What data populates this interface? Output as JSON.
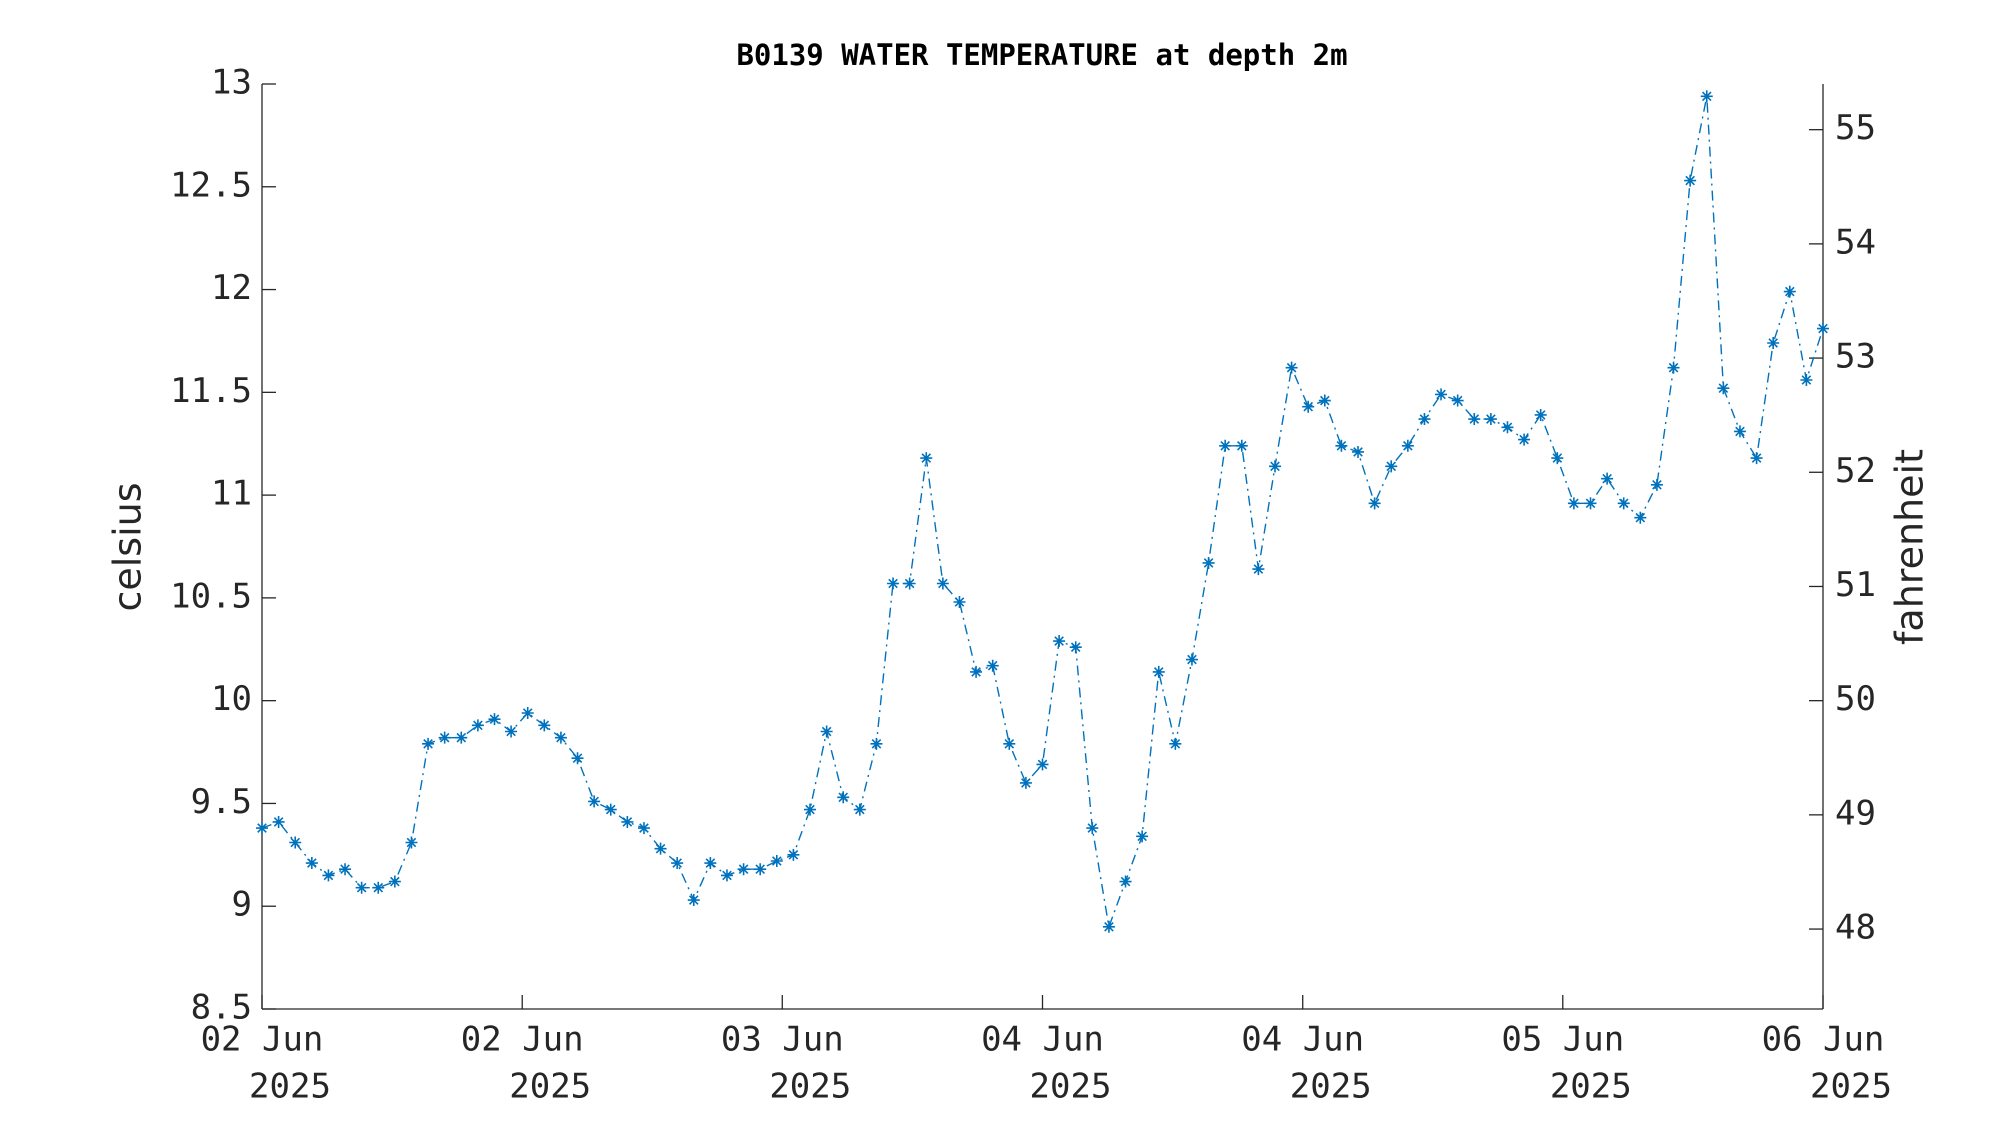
{
  "chart_data": {
    "type": "line",
    "title": "B0139 WATER TEMPERATURE at depth 2m",
    "ylabel": "celsius",
    "y2label": "fahrenheit",
    "xlim": [
      0,
      94
    ],
    "xticks": [
      {
        "value": 0,
        "label": [
          "02 Jun",
          "2025"
        ]
      },
      {
        "value": 15.67,
        "label": [
          "02 Jun",
          "2025"
        ]
      },
      {
        "value": 31.33,
        "label": [
          "03 Jun",
          "2025"
        ]
      },
      {
        "value": 47,
        "label": [
          "04 Jun",
          "2025"
        ]
      },
      {
        "value": 62.67,
        "label": [
          "04 Jun",
          "2025"
        ]
      },
      {
        "value": 78.33,
        "label": [
          "05 Jun",
          "2025"
        ]
      },
      {
        "value": 94,
        "label": [
          "06 Jun",
          "2025"
        ]
      }
    ],
    "ylim": [
      8.5,
      13
    ],
    "yticks": [
      {
        "value": 8.5,
        "label": "8.5"
      },
      9,
      {
        "value": 9.5,
        "label": "9.5"
      },
      10,
      {
        "value": 10.5,
        "label": "10.5"
      },
      11,
      {
        "value": 11.5,
        "label": "11.5"
      },
      12,
      {
        "value": 12.5,
        "label": "12.5"
      },
      13
    ],
    "y2lim": [
      47.3,
      55.4
    ],
    "y2ticks": [
      48,
      49,
      50,
      51,
      52,
      53,
      54,
      55
    ],
    "series": [
      {
        "color": "#0072bd",
        "line_style": "dash-dot",
        "marker": "asterisk",
        "values": [
          9.38,
          9.41,
          9.31,
          9.21,
          9.15,
          9.18,
          9.09,
          9.09,
          9.12,
          9.31,
          9.79,
          9.82,
          9.82,
          9.88,
          9.91,
          9.85,
          9.94,
          9.88,
          9.82,
          9.72,
          9.51,
          9.47,
          9.41,
          9.38,
          9.28,
          9.21,
          9.03,
          9.21,
          9.15,
          9.18,
          9.18,
          9.22,
          9.25,
          9.47,
          9.85,
          9.53,
          9.47,
          9.79,
          10.57,
          10.57,
          11.18,
          10.57,
          10.48,
          10.14,
          10.17,
          9.79,
          9.6,
          9.69,
          10.29,
          10.26,
          9.38,
          8.9,
          9.12,
          9.34,
          10.14,
          9.79,
          10.2,
          10.67,
          11.24,
          11.24,
          10.64,
          11.14,
          11.62,
          11.43,
          11.46,
          11.24,
          11.21,
          10.96,
          11.14,
          11.24,
          11.37,
          11.49,
          11.46,
          11.37,
          11.37,
          11.33,
          11.27,
          11.39,
          11.18,
          10.96,
          10.96,
          11.08,
          10.96,
          10.89,
          11.05,
          11.62,
          12.53,
          12.94,
          11.52,
          11.31,
          11.18,
          11.74,
          11.99,
          11.56,
          11.81
        ]
      }
    ]
  }
}
